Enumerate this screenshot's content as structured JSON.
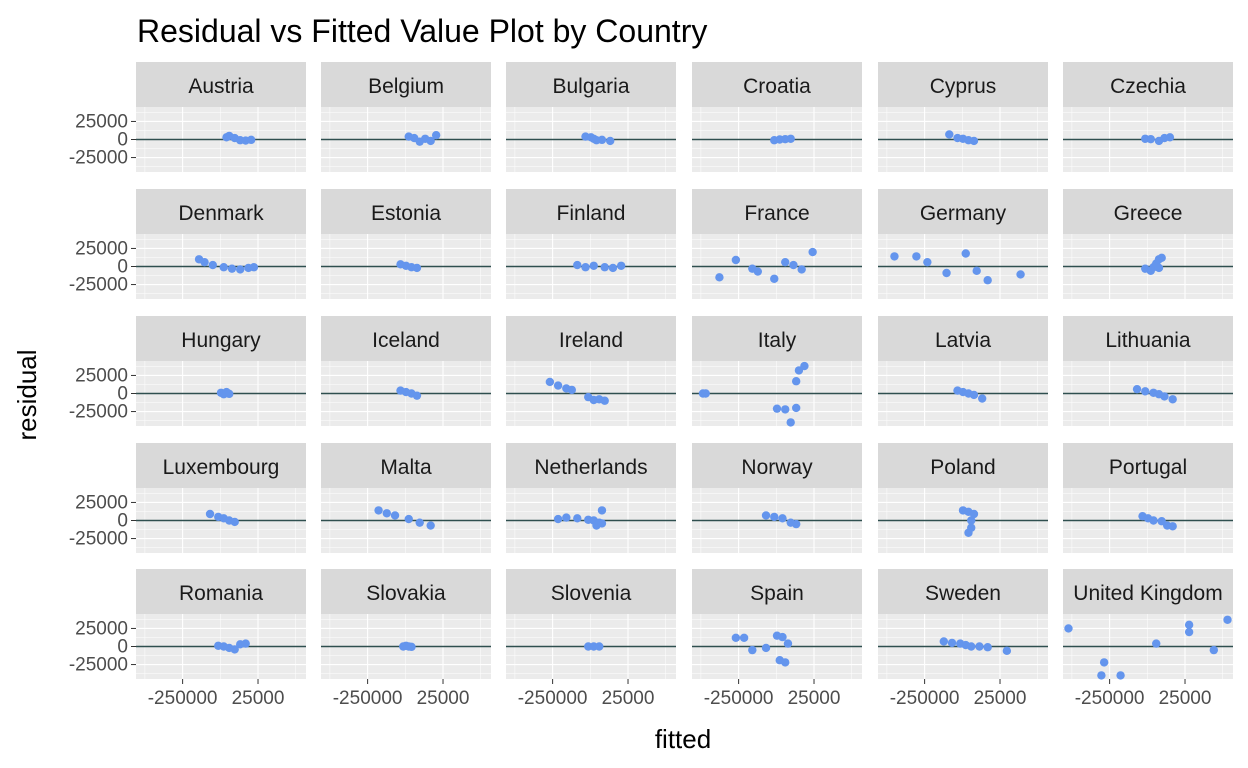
{
  "chart_data": {
    "type": "scatter",
    "title": "Residual vs Fitted Value Plot by Country",
    "xlabel": "fitted",
    "ylabel": "residual",
    "x_ticks": [
      -250000,
      25000
    ],
    "x_tick_labels": [
      "-250000",
      "25000"
    ],
    "y_ticks": [
      25000,
      0,
      -25000
    ],
    "y_tick_labels": [
      "25000",
      "0",
      "-25000"
    ],
    "xlim": [
      -420000,
      200000
    ],
    "ylim": [
      -45000,
      45000
    ],
    "hline": 0,
    "grid": true,
    "point_color": "#6495ed",
    "hline_color": "#2f4f4f",
    "panels": [
      {
        "name": "Austria",
        "points": [
          [
            -90000,
            3000
          ],
          [
            -80000,
            5000
          ],
          [
            -60000,
            2000
          ],
          [
            -40000,
            -1000
          ],
          [
            -20000,
            -1500
          ],
          [
            0,
            -500
          ]
        ]
      },
      {
        "name": "Belgium",
        "points": [
          [
            -100000,
            4000
          ],
          [
            -80000,
            2000
          ],
          [
            -60000,
            -3000
          ],
          [
            -40000,
            1000
          ],
          [
            -20000,
            -2000
          ],
          [
            0,
            6000
          ]
        ]
      },
      {
        "name": "Bulgaria",
        "points": [
          [
            -130000,
            4000
          ],
          [
            -110000,
            3000
          ],
          [
            -100000,
            1000
          ],
          [
            -90000,
            -1000
          ],
          [
            -70000,
            -500
          ],
          [
            -40000,
            -2000
          ]
        ]
      },
      {
        "name": "Croatia",
        "points": [
          [
            -120000,
            -1000
          ],
          [
            -100000,
            0
          ],
          [
            -80000,
            500
          ],
          [
            -60000,
            1000
          ]
        ]
      },
      {
        "name": "Cyprus",
        "points": [
          [
            -160000,
            7000
          ],
          [
            -130000,
            2000
          ],
          [
            -110000,
            1000
          ],
          [
            -90000,
            -1000
          ],
          [
            -70000,
            -2000
          ]
        ]
      },
      {
        "name": "Czechia",
        "points": [
          [
            -120000,
            1000
          ],
          [
            -100000,
            500
          ],
          [
            -70000,
            -2000
          ],
          [
            -50000,
            2000
          ],
          [
            -30000,
            3000
          ]
        ]
      },
      {
        "name": "Denmark",
        "points": [
          [
            -190000,
            10000
          ],
          [
            -170000,
            6000
          ],
          [
            -140000,
            2000
          ],
          [
            -100000,
            -1000
          ],
          [
            -70000,
            -3000
          ],
          [
            -40000,
            -4000
          ],
          [
            -10000,
            -2000
          ],
          [
            10000,
            -1000
          ]
        ]
      },
      {
        "name": "Estonia",
        "points": [
          [
            -130000,
            3000
          ],
          [
            -110000,
            1000
          ],
          [
            -90000,
            -1000
          ],
          [
            -70000,
            -2000
          ]
        ]
      },
      {
        "name": "Finland",
        "points": [
          [
            -160000,
            2000
          ],
          [
            -130000,
            -1000
          ],
          [
            -100000,
            1000
          ],
          [
            -60000,
            -1000
          ],
          [
            -30000,
            -2000
          ],
          [
            0,
            1000
          ]
        ]
      },
      {
        "name": "France",
        "points": [
          [
            -320000,
            -15000
          ],
          [
            -260000,
            9000
          ],
          [
            -200000,
            -3000
          ],
          [
            -180000,
            -7000
          ],
          [
            -120000,
            -17000
          ],
          [
            -80000,
            6000
          ],
          [
            -50000,
            2000
          ],
          [
            -20000,
            -4000
          ],
          [
            20000,
            20000
          ]
        ]
      },
      {
        "name": "Germany",
        "points": [
          [
            -360000,
            14000
          ],
          [
            -280000,
            14000
          ],
          [
            -240000,
            6000
          ],
          [
            -170000,
            -9000
          ],
          [
            -100000,
            18000
          ],
          [
            -60000,
            -6000
          ],
          [
            -20000,
            -19000
          ],
          [
            100000,
            -11000
          ]
        ]
      },
      {
        "name": "Greece",
        "points": [
          [
            -120000,
            -3000
          ],
          [
            -100000,
            -6000
          ],
          [
            -90000,
            -1000
          ],
          [
            -80000,
            4000
          ],
          [
            -70000,
            10000
          ],
          [
            -60000,
            12000
          ],
          [
            -70000,
            -2000
          ]
        ]
      },
      {
        "name": "Hungary",
        "points": [
          [
            -110000,
            1000
          ],
          [
            -100000,
            -1000
          ],
          [
            -90000,
            2000
          ],
          [
            -80000,
            -500
          ]
        ]
      },
      {
        "name": "Iceland",
        "points": [
          [
            -130000,
            4000
          ],
          [
            -110000,
            2000
          ],
          [
            -90000,
            0
          ],
          [
            -70000,
            -3000
          ]
        ]
      },
      {
        "name": "Ireland",
        "points": [
          [
            -260000,
            16000
          ],
          [
            -230000,
            11000
          ],
          [
            -200000,
            7000
          ],
          [
            -180000,
            5000
          ],
          [
            -120000,
            -5000
          ],
          [
            -100000,
            -9000
          ],
          [
            -80000,
            -8000
          ],
          [
            -60000,
            -10000
          ]
        ]
      },
      {
        "name": "Italy",
        "points": [
          [
            -380000,
            0
          ],
          [
            -370000,
            0
          ],
          [
            -110000,
            -21000
          ],
          [
            -80000,
            -22000
          ],
          [
            -40000,
            -20000
          ],
          [
            -60000,
            -40000
          ],
          [
            -40000,
            17000
          ],
          [
            -30000,
            32000
          ],
          [
            -10000,
            38000
          ]
        ]
      },
      {
        "name": "Latvia",
        "points": [
          [
            -130000,
            4000
          ],
          [
            -110000,
            2000
          ],
          [
            -90000,
            0
          ],
          [
            -70000,
            -2000
          ],
          [
            -40000,
            -7000
          ]
        ]
      },
      {
        "name": "Lithuania",
        "points": [
          [
            -150000,
            6000
          ],
          [
            -120000,
            3000
          ],
          [
            -90000,
            1000
          ],
          [
            -70000,
            -1000
          ],
          [
            -50000,
            -4000
          ],
          [
            -20000,
            -8000
          ]
        ]
      },
      {
        "name": "Luxembourg",
        "points": [
          [
            -150000,
            9000
          ],
          [
            -120000,
            5000
          ],
          [
            -100000,
            3000
          ],
          [
            -80000,
            0
          ],
          [
            -60000,
            -2000
          ]
        ]
      },
      {
        "name": "Malta",
        "points": [
          [
            -210000,
            14000
          ],
          [
            -180000,
            10000
          ],
          [
            -150000,
            7000
          ],
          [
            -100000,
            2000
          ],
          [
            -60000,
            -3000
          ],
          [
            -20000,
            -7000
          ]
        ]
      },
      {
        "name": "Netherlands",
        "points": [
          [
            -230000,
            2000
          ],
          [
            -200000,
            4000
          ],
          [
            -160000,
            3000
          ],
          [
            -120000,
            1000
          ],
          [
            -100000,
            0
          ],
          [
            -80000,
            -3000
          ],
          [
            -90000,
            -7000
          ],
          [
            -70000,
            -4000
          ],
          [
            -70000,
            14000
          ]
        ]
      },
      {
        "name": "Norway",
        "points": [
          [
            -150000,
            7000
          ],
          [
            -120000,
            5000
          ],
          [
            -90000,
            3000
          ],
          [
            -60000,
            -3000
          ],
          [
            -40000,
            -5000
          ]
        ]
      },
      {
        "name": "Poland",
        "points": [
          [
            -110000,
            14000
          ],
          [
            -90000,
            12000
          ],
          [
            -80000,
            0
          ],
          [
            -70000,
            9000
          ],
          [
            -80000,
            -10000
          ],
          [
            -90000,
            -17000
          ]
        ]
      },
      {
        "name": "Portugal",
        "points": [
          [
            -130000,
            6000
          ],
          [
            -110000,
            3000
          ],
          [
            -90000,
            0
          ],
          [
            -60000,
            -1000
          ],
          [
            -40000,
            -7000
          ],
          [
            -20000,
            -8000
          ]
        ]
      },
      {
        "name": "Romania",
        "points": [
          [
            -120000,
            1000
          ],
          [
            -100000,
            0
          ],
          [
            -80000,
            -2000
          ],
          [
            -60000,
            -4000
          ],
          [
            -40000,
            3000
          ],
          [
            -20000,
            4000
          ]
        ]
      },
      {
        "name": "Slovakia",
        "points": [
          [
            -120000,
            0
          ],
          [
            -110000,
            1000
          ],
          [
            -100000,
            0
          ],
          [
            -90000,
            -500
          ]
        ]
      },
      {
        "name": "Slovenia",
        "points": [
          [
            -120000,
            0
          ],
          [
            -100000,
            0
          ],
          [
            -80000,
            0
          ]
        ]
      },
      {
        "name": "Spain",
        "points": [
          [
            -260000,
            12000
          ],
          [
            -230000,
            12000
          ],
          [
            -200000,
            -5000
          ],
          [
            -150000,
            -2000
          ],
          [
            -110000,
            15000
          ],
          [
            -90000,
            13000
          ],
          [
            -70000,
            4000
          ],
          [
            -100000,
            -19000
          ],
          [
            -80000,
            -22000
          ]
        ]
      },
      {
        "name": "Sweden",
        "points": [
          [
            -180000,
            7000
          ],
          [
            -150000,
            5000
          ],
          [
            -120000,
            4000
          ],
          [
            -100000,
            2000
          ],
          [
            -80000,
            0
          ],
          [
            -50000,
            0
          ],
          [
            -20000,
            -1000
          ],
          [
            50000,
            -6000
          ]
        ]
      },
      {
        "name": "United Kingdom",
        "points": [
          [
            -400000,
            25000
          ],
          [
            -270000,
            -22000
          ],
          [
            -280000,
            -40000
          ],
          [
            -210000,
            -40000
          ],
          [
            -80000,
            4000
          ],
          [
            40000,
            20000
          ],
          [
            40000,
            30000
          ],
          [
            130000,
            -5000
          ],
          [
            180000,
            37000
          ]
        ]
      }
    ]
  }
}
